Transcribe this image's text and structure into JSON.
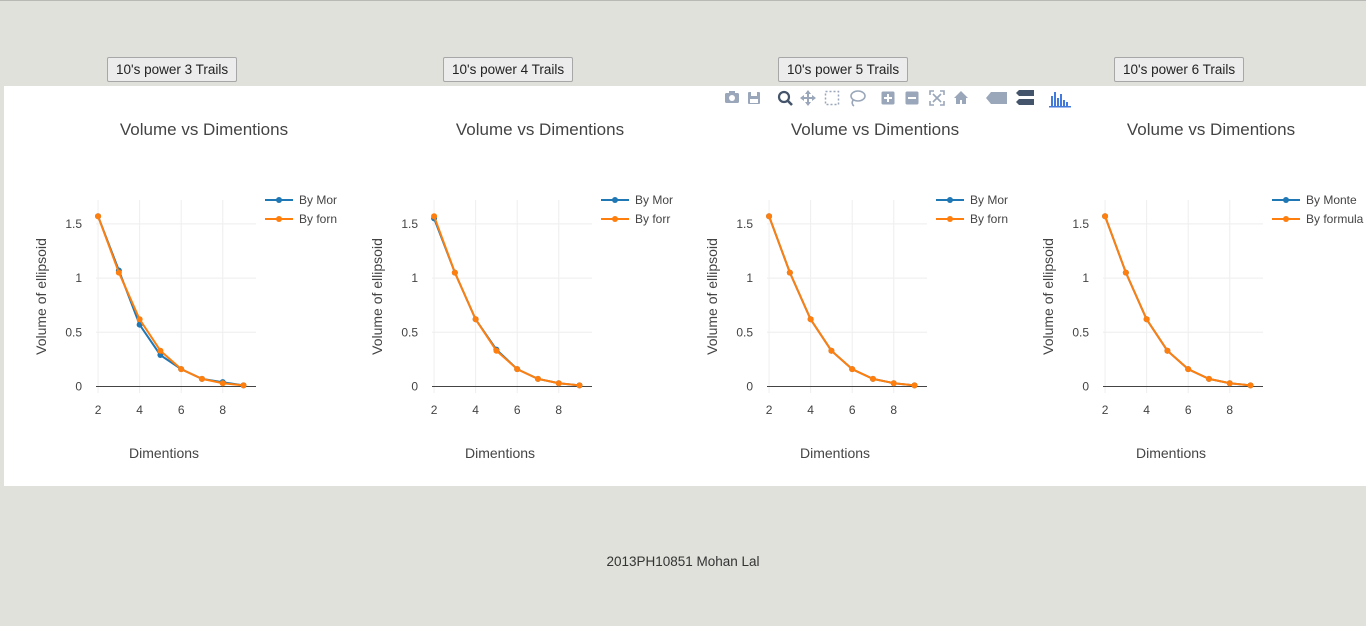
{
  "buttons": [
    {
      "label": "10's power 3 Trails"
    },
    {
      "label": "10's power 4 Trails"
    },
    {
      "label": "10's power 5 Trails"
    },
    {
      "label": "10's power 6 Trails"
    }
  ],
  "footer": {
    "text": "2013PH10851 Mohan Lal"
  },
  "modebar": {
    "icons": [
      "camera-icon",
      "save-icon",
      "zoom-icon",
      "pan-icon",
      "box-select-icon",
      "lasso-select-icon",
      "zoom-in-icon",
      "zoom-out-icon",
      "autoscale-icon",
      "reset-axes-icon",
      "hover-closest-icon",
      "hover-compare-icon",
      "plotly-logo-icon"
    ],
    "icon_color": "#9aa6b9",
    "active_color": "#44546a",
    "logo_color": "#447adb"
  },
  "colors": {
    "monte": "#1f77b4",
    "formula": "#ff7f0e"
  },
  "chart_data": [
    {
      "type": "line",
      "title": "Volume vs Dimentions",
      "xlabel": "Dimentions",
      "ylabel": "Volume of ellipsoid",
      "xlim": [
        1.9,
        9.6
      ],
      "ylim": [
        -0.06,
        1.72
      ],
      "x_ticks": [
        "2",
        "4",
        "6",
        "8"
      ],
      "y_ticks": [
        "0",
        "0.5",
        "1",
        "1.5"
      ],
      "legend_placement": "top-right",
      "series": [
        {
          "name": "By Mor",
          "x": [
            2,
            3,
            4,
            5,
            6,
            7,
            8,
            9
          ],
          "values": [
            1.57,
            1.07,
            0.57,
            0.29,
            0.16,
            0.07,
            0.04,
            0.01
          ]
        },
        {
          "name": "By forn",
          "x": [
            2,
            3,
            4,
            5,
            6,
            7,
            8,
            9
          ],
          "values": [
            1.57,
            1.05,
            0.62,
            0.33,
            0.16,
            0.07,
            0.03,
            0.01
          ]
        }
      ]
    },
    {
      "type": "line",
      "title": "Volume vs Dimentions",
      "xlabel": "Dimentions",
      "ylabel": "Volume of ellipsoid",
      "xlim": [
        1.9,
        9.6
      ],
      "ylim": [
        -0.06,
        1.72
      ],
      "x_ticks": [
        "2",
        "4",
        "6",
        "8"
      ],
      "y_ticks": [
        "0",
        "0.5",
        "1",
        "1.5"
      ],
      "legend_placement": "top-right",
      "series": [
        {
          "name": "By Mor",
          "x": [
            2,
            3,
            4,
            5,
            6,
            7,
            8,
            9
          ],
          "values": [
            1.55,
            1.05,
            0.62,
            0.34,
            0.16,
            0.07,
            0.03,
            0.01
          ]
        },
        {
          "name": "By forr",
          "x": [
            2,
            3,
            4,
            5,
            6,
            7,
            8,
            9
          ],
          "values": [
            1.57,
            1.05,
            0.62,
            0.33,
            0.16,
            0.07,
            0.03,
            0.01
          ]
        }
      ]
    },
    {
      "type": "line",
      "title": "Volume vs Dimentions",
      "xlabel": "Dimentions",
      "ylabel": "Volume of ellipsoid",
      "xlim": [
        1.9,
        9.6
      ],
      "ylim": [
        -0.06,
        1.72
      ],
      "x_ticks": [
        "2",
        "4",
        "6",
        "8"
      ],
      "y_ticks": [
        "0",
        "0.5",
        "1",
        "1.5"
      ],
      "legend_placement": "top-right",
      "series": [
        {
          "name": "By Mor",
          "x": [
            2,
            3,
            4,
            5,
            6,
            7,
            8,
            9
          ],
          "values": [
            1.57,
            1.05,
            0.62,
            0.33,
            0.16,
            0.07,
            0.03,
            0.01
          ]
        },
        {
          "name": "By forn",
          "x": [
            2,
            3,
            4,
            5,
            6,
            7,
            8,
            9
          ],
          "values": [
            1.57,
            1.05,
            0.62,
            0.33,
            0.16,
            0.07,
            0.03,
            0.01
          ]
        }
      ]
    },
    {
      "type": "line",
      "title": "Volume vs Dimentions",
      "xlabel": "Dimentions",
      "ylabel": "Volume of ellipsoid",
      "xlim": [
        1.9,
        9.6
      ],
      "ylim": [
        -0.06,
        1.72
      ],
      "x_ticks": [
        "2",
        "4",
        "6",
        "8"
      ],
      "y_ticks": [
        "0",
        "0.5",
        "1",
        "1.5"
      ],
      "legend_placement": "top-right",
      "series": [
        {
          "name": "By Monte",
          "x": [
            2,
            3,
            4,
            5,
            6,
            7,
            8,
            9
          ],
          "values": [
            1.57,
            1.05,
            0.62,
            0.33,
            0.16,
            0.07,
            0.03,
            0.01
          ]
        },
        {
          "name": "By formula",
          "x": [
            2,
            3,
            4,
            5,
            6,
            7,
            8,
            9
          ],
          "values": [
            1.57,
            1.05,
            0.62,
            0.33,
            0.16,
            0.07,
            0.03,
            0.01
          ]
        }
      ]
    }
  ]
}
